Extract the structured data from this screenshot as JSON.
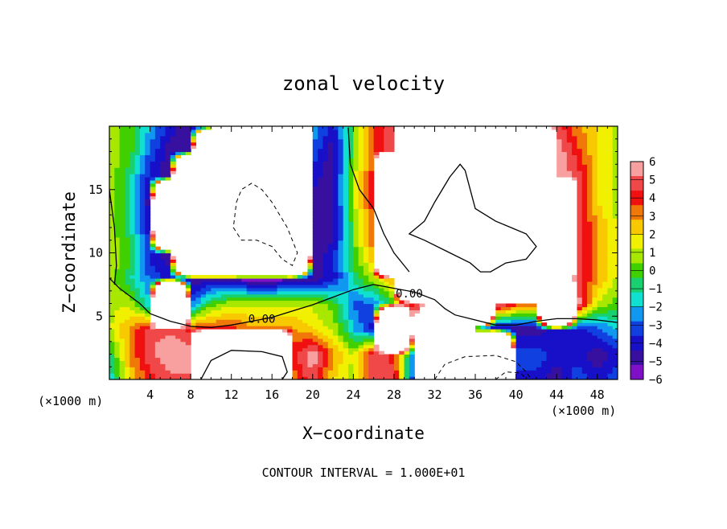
{
  "chart_data": {
    "type": "heatmap",
    "title": "zonal velocity",
    "xlabel": "X−coordinate",
    "ylabel": "Z−coordinate",
    "x_unit_left": "(×1000 m)",
    "x_unit_right": "(×1000 m)",
    "footer": "CONTOUR INTERVAL = 1.000E+01",
    "xlim": [
      0,
      50
    ],
    "ylim": [
      0,
      20
    ],
    "x_ticks": [
      4,
      8,
      12,
      16,
      20,
      24,
      28,
      32,
      36,
      40,
      44,
      48
    ],
    "x_tick_labels": [
      "4",
      "8",
      "12",
      "16",
      "20",
      "24",
      "28",
      "32",
      "36",
      "40",
      "44",
      "48"
    ],
    "y_ticks": [
      5,
      10,
      15
    ],
    "y_tick_labels": [
      "5",
      "10",
      "15"
    ],
    "contour_labels": [
      {
        "text": "0.00",
        "x": 15.0,
        "y": 4.8
      },
      {
        "text": "0.00",
        "x": 29.5,
        "y": 6.8
      }
    ],
    "colorbar": {
      "levels": [
        6,
        5,
        4,
        3,
        2,
        1,
        0,
        -1,
        -2,
        -3,
        -4,
        -5,
        -6
      ],
      "tick_labels": [
        "6",
        "5",
        "4",
        "3",
        "2",
        "1",
        "0",
        "−1",
        "−2",
        "−3",
        "−4",
        "−5",
        "−6"
      ],
      "colors": [
        "#f8a0a0",
        "#f04848",
        "#f01010",
        "#f07808",
        "#f8c800",
        "#f0f000",
        "#a8e800",
        "#40d000",
        "#18d070",
        "#10e0d0",
        "#1098f0",
        "#1040e0",
        "#1810c8",
        "#3810a0",
        "#8010c8"
      ]
    },
    "field": {
      "grid_x": [
        0,
        2,
        4,
        6,
        8,
        10,
        12,
        14,
        16,
        18,
        20,
        22,
        24,
        26,
        28,
        30,
        32,
        34,
        36,
        38,
        40,
        42,
        44,
        46,
        48,
        50
      ],
      "grid_y": [
        0,
        2,
        4,
        6,
        8,
        10,
        12,
        14,
        16,
        18,
        20
      ],
      "values": [
        [
          -2,
          2,
          4,
          5,
          5,
          99,
          99,
          99,
          99,
          3,
          5,
          2,
          1,
          5,
          5,
          -4,
          99,
          99,
          99,
          99,
          -4,
          -4,
          -5,
          -3,
          -4,
          -3
        ],
        [
          -1,
          3,
          5,
          6,
          6,
          99,
          99,
          99,
          99,
          4,
          6,
          3,
          1,
          5,
          4,
          -3,
          99,
          99,
          99,
          99,
          -3,
          -3,
          -4,
          -4,
          -5,
          -4
        ],
        [
          1,
          3,
          5,
          5,
          4,
          4,
          4,
          3,
          3,
          3,
          2,
          1,
          -2,
          -4,
          99,
          -3,
          99,
          99,
          -6,
          -5,
          -5,
          -5,
          -4,
          -4,
          -3,
          -2
        ],
        [
          1,
          1,
          -2,
          99,
          -3,
          0,
          1,
          1,
          1,
          1,
          1,
          0,
          -3,
          -3,
          0,
          4,
          5,
          6,
          99,
          6,
          4,
          4,
          99,
          6,
          1,
          0
        ],
        [
          1,
          -1,
          -3,
          -4,
          -5,
          -5,
          -5,
          -6,
          -6,
          -5,
          -5,
          -4,
          -1,
          1,
          3,
          99,
          99,
          99,
          99,
          99,
          99,
          99,
          6,
          5,
          3,
          1
        ],
        [
          1,
          0,
          -4,
          -5,
          99,
          99,
          99,
          99,
          99,
          99,
          -5,
          -4,
          0,
          3,
          99,
          99,
          99,
          99,
          99,
          99,
          99,
          99,
          99,
          5,
          3,
          1
        ],
        [
          1,
          -1,
          -4,
          99,
          99,
          99,
          99,
          99,
          99,
          99,
          -5,
          -5,
          0,
          4,
          99,
          99,
          99,
          99,
          99,
          99,
          99,
          99,
          99,
          5,
          3,
          1
        ],
        [
          1,
          -1,
          -5,
          99,
          99,
          99,
          99,
          99,
          99,
          99,
          -5,
          -5,
          1,
          4,
          99,
          99,
          99,
          99,
          99,
          99,
          99,
          99,
          99,
          5,
          2,
          1
        ],
        [
          1,
          -1,
          -4,
          -5,
          99,
          99,
          99,
          99,
          99,
          99,
          -4,
          -5,
          1,
          4,
          99,
          99,
          99,
          99,
          99,
          99,
          99,
          99,
          6,
          5,
          2,
          1
        ],
        [
          1,
          0,
          -3,
          -5,
          -5,
          99,
          99,
          99,
          99,
          99,
          -3,
          -5,
          0,
          4,
          5,
          99,
          99,
          99,
          99,
          99,
          99,
          99,
          6,
          4,
          2,
          1
        ],
        [
          1,
          0,
          -2,
          -4,
          -5,
          -5,
          99,
          99,
          99,
          99,
          -2,
          -4,
          0,
          4,
          5,
          99,
          99,
          99,
          99,
          99,
          99,
          6,
          5,
          3,
          2,
          1
        ]
      ]
    }
  }
}
